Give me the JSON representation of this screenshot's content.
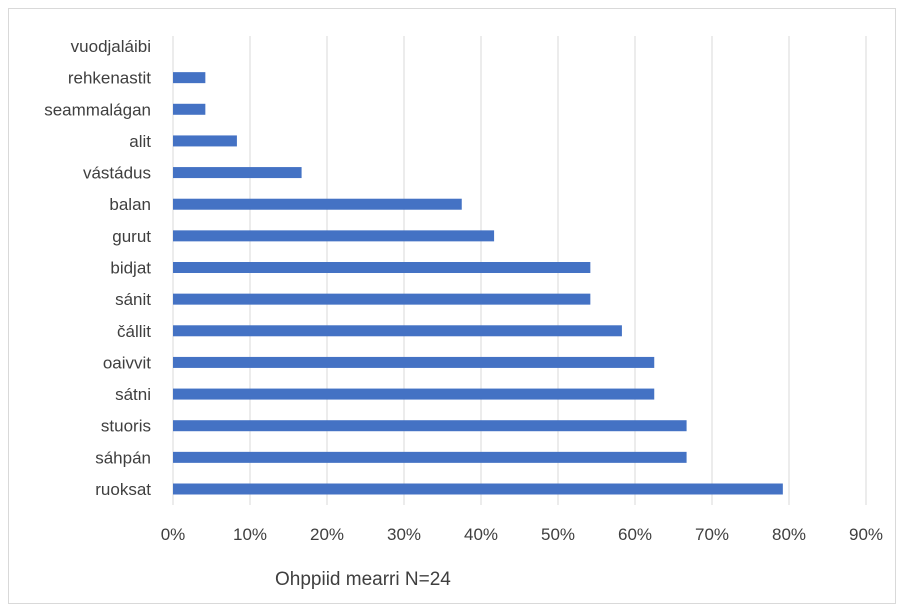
{
  "chart_data": {
    "type": "bar",
    "orientation": "horizontal",
    "categories": [
      "ruoksat",
      "sáhpán",
      "stuoris",
      "sátni",
      "oaivvit",
      "čállit",
      "sánit",
      "bidjat",
      "gurut",
      "balan",
      "vástádus",
      "alit",
      "seammalágan",
      "rehkenastit",
      "vuodjaláibi"
    ],
    "values": [
      0.792,
      0.667,
      0.667,
      0.625,
      0.625,
      0.583,
      0.542,
      0.542,
      0.417,
      0.375,
      0.167,
      0.083,
      0.042,
      0.042,
      0.0
    ],
    "xlabel": "Ohppiid mearri N=24",
    "ylabel": "",
    "xlim": [
      0,
      0.9
    ],
    "xticks": [
      "0%",
      "10%",
      "20%",
      "30%",
      "40%",
      "50%",
      "60%",
      "70%",
      "80%",
      "90%"
    ],
    "grid": true,
    "bar_color": "#4472c4"
  }
}
